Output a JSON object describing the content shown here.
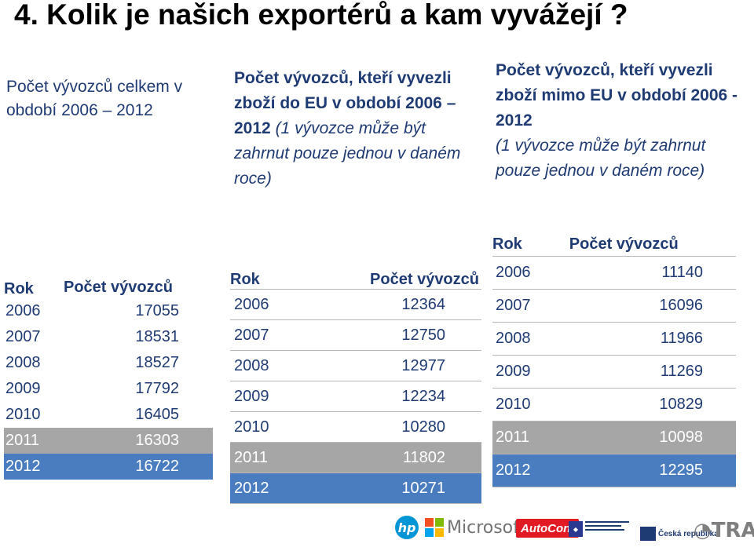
{
  "title": "4. Kolik je našich exportérů a kam vyvážejí ?",
  "panel_total": {
    "heading": "Počet vývozců celkem v období 2006 – 2012",
    "col_year": "Rok",
    "col_count": "Počet vývozců",
    "rows": [
      {
        "year": "2006",
        "count": "17055"
      },
      {
        "year": "2007",
        "count": "18531"
      },
      {
        "year": "2008",
        "count": "18527"
      },
      {
        "year": "2009",
        "count": "17792"
      },
      {
        "year": "2010",
        "count": "16405"
      },
      {
        "year": "2011",
        "count": "16303"
      },
      {
        "year": "2012",
        "count": "16722"
      }
    ]
  },
  "panel_eu": {
    "heading_bold": "Počet vývozců, kteří vyvezli zboží do EU v období 2006 – 2012",
    "heading_italic": "(1 vývozce může být zahrnut pouze jednou v daném roce)",
    "col_year": "Rok",
    "col_count": "Počet vývozců",
    "rows": [
      {
        "year": "2006",
        "count": "12364"
      },
      {
        "year": "2007",
        "count": "12750"
      },
      {
        "year": "2008",
        "count": "12977"
      },
      {
        "year": "2009",
        "count": "12234"
      },
      {
        "year": "2010",
        "count": "10280"
      },
      {
        "year": "2011",
        "count": "11802"
      },
      {
        "year": "2012",
        "count": "10271"
      }
    ]
  },
  "panel_non_eu": {
    "heading_bold": "Počet vývozců, kteří vyvezli zboží mimo EU v období 2006 - 2012",
    "heading_italic": "(1 vývozce může být zahrnut pouze  jednou v daném roce)",
    "col_year": "Rok",
    "col_count": "Počet vývozců",
    "rows": [
      {
        "year": "2006",
        "count": "11140"
      },
      {
        "year": "2007",
        "count": "16096"
      },
      {
        "year": "2008",
        "count": "11966"
      },
      {
        "year": "2009",
        "count": "11269"
      },
      {
        "year": "2010",
        "count": "10829"
      },
      {
        "year": "2011",
        "count": "10098"
      },
      {
        "year": "2012",
        "count": "12295"
      }
    ]
  },
  "logos": {
    "hp": "hp",
    "microsoft": "Microsoft",
    "autocont": "AutoCont",
    "czech_republic": "Česká republika",
    "trade": "TRADE"
  },
  "colors": {
    "text_blue": "#1f3b73",
    "row_gray": "#a6a6a6",
    "row_blue": "#4a7cc0"
  },
  "icons": [
    "hp-logo",
    "microsoft-logo",
    "autocont-logo",
    "amsp-logo",
    "czech-republic-logo",
    "trade-logo"
  ]
}
